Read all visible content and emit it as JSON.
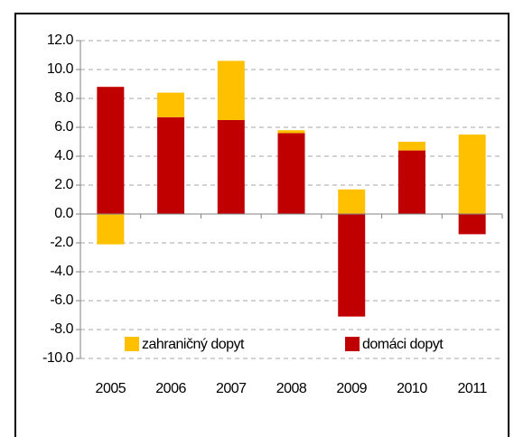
{
  "chart_data": {
    "type": "bar",
    "stacked": true,
    "categories": [
      "2005",
      "2006",
      "2007",
      "2008",
      "2009",
      "2010",
      "2011"
    ],
    "series": [
      {
        "name": "domáci dopyt",
        "color": "#c00000",
        "values": [
          8.8,
          6.7,
          6.5,
          5.6,
          -7.1,
          4.4,
          -1.4
        ]
      },
      {
        "name": "zahraničný dopyt",
        "color": "#ffc000",
        "values": [
          -2.1,
          1.7,
          4.1,
          0.2,
          1.7,
          0.6,
          5.5
        ]
      }
    ],
    "legend_order": [
      1,
      0
    ],
    "ylim": [
      -10,
      12
    ],
    "yticks": [
      {
        "value": -10,
        "label": "-10.0"
      },
      {
        "value": -8,
        "label": "-8.0"
      },
      {
        "value": -6,
        "label": "-6.0"
      },
      {
        "value": -4,
        "label": "-4.0"
      },
      {
        "value": -2,
        "label": "-2.0"
      },
      {
        "value": 0,
        "label": "0.0"
      },
      {
        "value": 2,
        "label": "2.0"
      },
      {
        "value": 4,
        "label": "4.0"
      },
      {
        "value": 6,
        "label": "6.0"
      },
      {
        "value": 8,
        "label": "8.0"
      },
      {
        "value": 10,
        "label": "10.0"
      },
      {
        "value": 12,
        "label": "12.0"
      }
    ],
    "grid": true,
    "legend": "bottom"
  }
}
